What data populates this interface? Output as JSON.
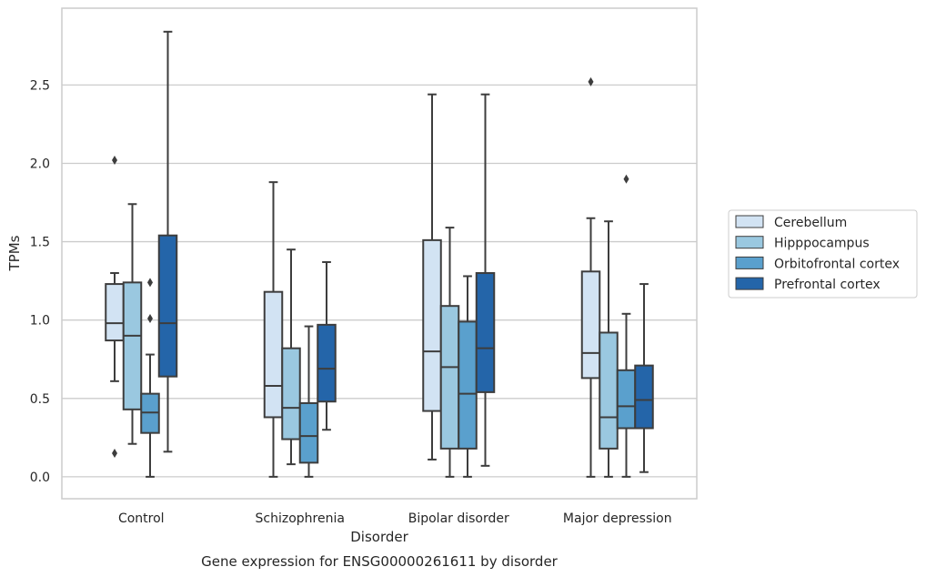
{
  "chart_data": {
    "type": "boxplot",
    "title": "Gene expression for ENSG00000261611 by disorder",
    "xlabel": "Disorder",
    "ylabel": "TPMs",
    "ylim": [
      -0.14,
      2.99
    ],
    "yticks": [
      "0.0",
      "0.5",
      "1.0",
      "1.5",
      "2.0",
      "2.5"
    ],
    "grid": "horizontal",
    "legend_position": "right",
    "categories": [
      "Control",
      "Schizophrenia",
      "Bipolar disorder",
      "Major depression"
    ],
    "series": [
      {
        "name": "Cerebellum",
        "color": "#d2e3f3",
        "boxes": [
          {
            "whislo": 0.61,
            "q1": 0.87,
            "med": 0.98,
            "q3": 1.23,
            "whishi": 1.3,
            "fliers": [
              2.02,
              0.15
            ]
          },
          {
            "whislo": 0.0,
            "q1": 0.38,
            "med": 0.58,
            "q3": 1.18,
            "whishi": 1.88,
            "fliers": []
          },
          {
            "whislo": 0.11,
            "q1": 0.42,
            "med": 0.8,
            "q3": 1.51,
            "whishi": 2.44,
            "fliers": []
          },
          {
            "whislo": 0.0,
            "q1": 0.63,
            "med": 0.79,
            "q3": 1.31,
            "whishi": 1.65,
            "fliers": [
              2.52
            ]
          }
        ]
      },
      {
        "name": "Hipppocampus",
        "color": "#9ac8e0",
        "boxes": [
          {
            "whislo": 0.21,
            "q1": 0.43,
            "med": 0.9,
            "q3": 1.24,
            "whishi": 1.74,
            "fliers": []
          },
          {
            "whislo": 0.08,
            "q1": 0.24,
            "med": 0.44,
            "q3": 0.82,
            "whishi": 1.45,
            "fliers": []
          },
          {
            "whislo": 0.0,
            "q1": 0.18,
            "med": 0.7,
            "q3": 1.09,
            "whishi": 1.59,
            "fliers": []
          },
          {
            "whislo": 0.0,
            "q1": 0.18,
            "med": 0.38,
            "q3": 0.92,
            "whishi": 1.63,
            "fliers": []
          }
        ]
      },
      {
        "name": "Orbitofrontal cortex",
        "color": "#5aa0cd",
        "boxes": [
          {
            "whislo": 0.0,
            "q1": 0.28,
            "med": 0.41,
            "q3": 0.53,
            "whishi": 0.78,
            "fliers": [
              1.24,
              1.01
            ]
          },
          {
            "whislo": 0.0,
            "q1": 0.09,
            "med": 0.26,
            "q3": 0.47,
            "whishi": 0.96,
            "fliers": []
          },
          {
            "whislo": 0.0,
            "q1": 0.18,
            "med": 0.53,
            "q3": 0.99,
            "whishi": 1.28,
            "fliers": []
          },
          {
            "whislo": 0.0,
            "q1": 0.31,
            "med": 0.45,
            "q3": 0.68,
            "whishi": 1.04,
            "fliers": [
              1.9
            ]
          }
        ]
      },
      {
        "name": "Prefrontal cortex",
        "color": "#2465a9",
        "boxes": [
          {
            "whislo": 0.16,
            "q1": 0.64,
            "med": 0.98,
            "q3": 1.54,
            "whishi": 2.84,
            "fliers": []
          },
          {
            "whislo": 0.3,
            "q1": 0.48,
            "med": 0.69,
            "q3": 0.97,
            "whishi": 1.37,
            "fliers": []
          },
          {
            "whislo": 0.07,
            "q1": 0.54,
            "med": 0.82,
            "q3": 1.3,
            "whishi": 2.44,
            "fliers": []
          },
          {
            "whislo": 0.03,
            "q1": 0.31,
            "med": 0.49,
            "q3": 0.71,
            "whishi": 1.23,
            "fliers": []
          }
        ]
      }
    ]
  }
}
